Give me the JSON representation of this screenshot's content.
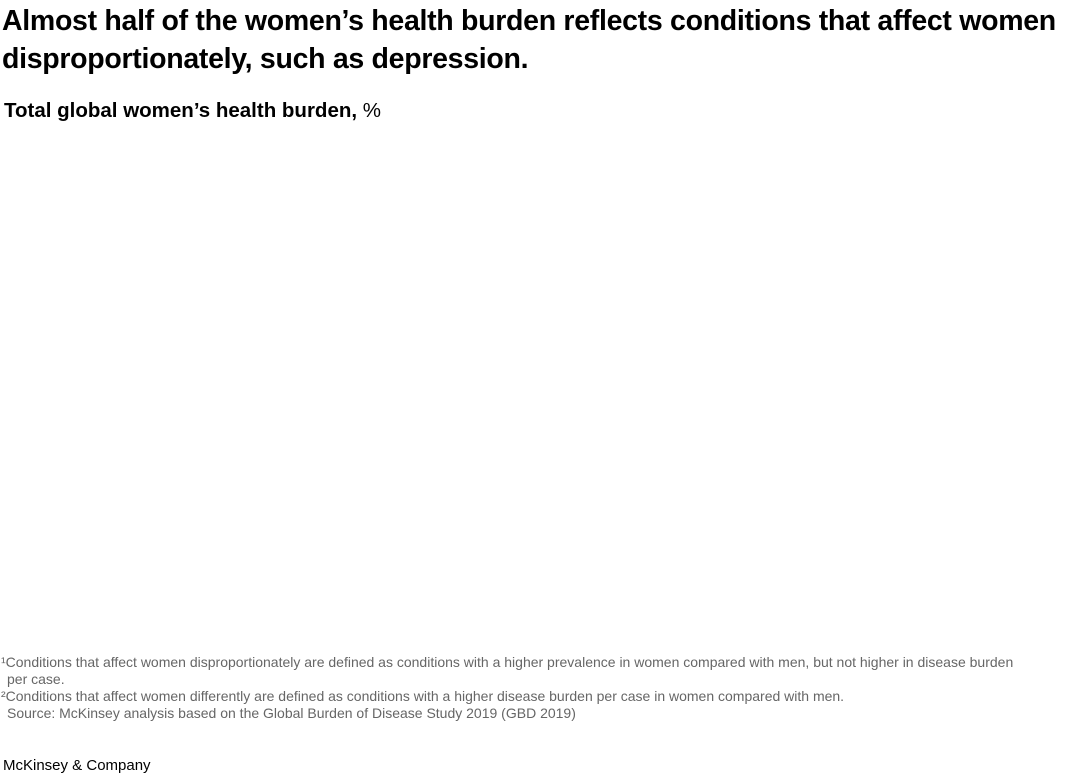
{
  "chart_data": {
    "type": "other",
    "title": "Almost half of the women’s health burden reflects conditions that affect women disproportionately, such as depression.",
    "subtitle_label": "Total global women’s health burden,",
    "subtitle_unit": "%"
  },
  "footnotes": [
    {
      "text": "¹Conditions that affect women disproportionately are defined as conditions with a higher prevalence in women compared with men, but not higher in disease burden",
      "continuation": "per case."
    },
    {
      "text": "²Conditions that affect women differently are defined as conditions with a higher disease burden per case in women compared with men.",
      "continuation": ""
    }
  ],
  "source": "Source: McKinsey analysis based on the Global Burden of Disease Study 2019 (GBD 2019)",
  "brand": "McKinsey & Company"
}
